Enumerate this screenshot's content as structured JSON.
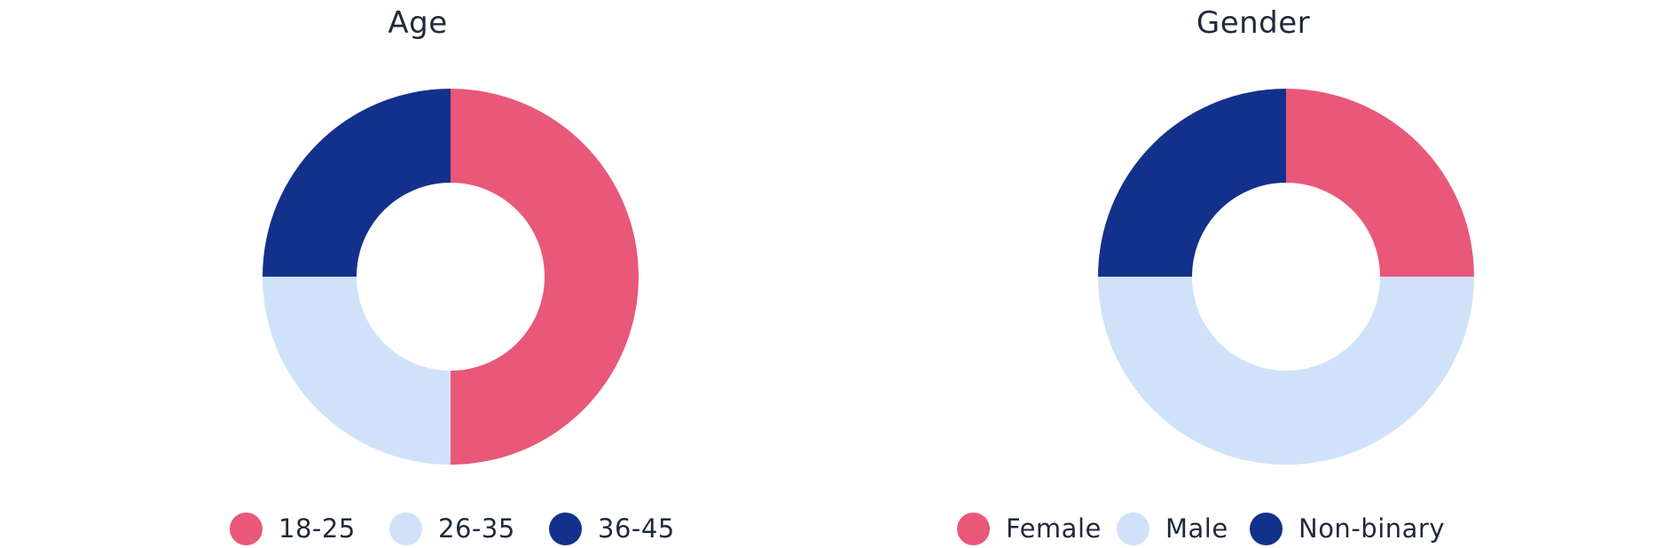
{
  "chart_data": [
    {
      "type": "pie",
      "donut": true,
      "title": "Age",
      "categories": [
        "18-25",
        "26-35",
        "36-45"
      ],
      "values": [
        50,
        25,
        25
      ],
      "colors": [
        "#e95779",
        "#cfe2f9",
        "#13318b"
      ],
      "legend_position": "bottom"
    },
    {
      "type": "pie",
      "donut": true,
      "title": "Gender",
      "categories": [
        "Female",
        "Male",
        "Non-binary"
      ],
      "values": [
        25,
        50,
        25
      ],
      "colors": [
        "#e95779",
        "#cfe2f9",
        "#13318b"
      ],
      "legend_position": "bottom"
    }
  ]
}
